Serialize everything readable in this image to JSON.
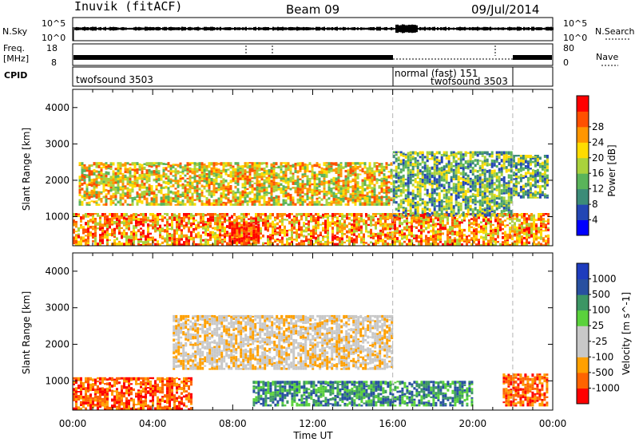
{
  "header": {
    "station": "Inuvik (fitACF)",
    "beam": "Beam 09",
    "date": "09/Jul/2014"
  },
  "summary": {
    "nsky_label": "N.Sky",
    "nsky_ticks": [
      "10^5",
      "10^0"
    ],
    "nsearch_label": "N.Search",
    "nsearch_ticks": [
      "10^5",
      "10^0"
    ],
    "freq_label": "Freq.",
    "freq_unit": "[MHz]",
    "freq_ticks": [
      "18",
      "8"
    ],
    "nave_label": "Nave",
    "nave_ticks": [
      "80",
      "0"
    ],
    "cpid_label": "CPID",
    "cpid_segments": [
      {
        "name": "twofsound 3503",
        "start": 0,
        "end": 16
      },
      {
        "name": "normal (fast) 151",
        "start": 16,
        "end": 22
      },
      {
        "name": "twofsound 3503",
        "start": 16,
        "end": 22
      }
    ]
  },
  "colors": {
    "power": [
      "#0000ff",
      "#2346b4",
      "#3c8c78",
      "#5ab45a",
      "#aad23c",
      "#ffdc00",
      "#ff9600",
      "#ff5000",
      "#ff0000"
    ],
    "velocity": [
      "#ff0000",
      "#ff6400",
      "#ffa000",
      "#c8c8c8",
      "#c8c8c8",
      "#5ad23c",
      "#3c9664",
      "#2850a0",
      "#1e3cbe"
    ],
    "grey_line": "#b4b4b4"
  },
  "chart_data": [
    {
      "type": "heatmap",
      "name": "power",
      "xlabel": "Time UT",
      "ylabel": "Slant Range [km]",
      "xlim": [
        0,
        24
      ],
      "ylim": [
        200,
        4500
      ],
      "x_tick_labels": [
        "00:00",
        "04:00",
        "08:00",
        "12:00",
        "16:00",
        "20:00",
        "00:00"
      ],
      "y_ticks": [
        1000,
        2000,
        3000,
        4000
      ],
      "colorbar": {
        "label": "Power [dB]",
        "ticks": [
          "4",
          "8",
          "12",
          "16",
          "20",
          "24",
          "28"
        ],
        "range": [
          0,
          30
        ]
      },
      "echo_bands": [
        {
          "t0": 0,
          "t1": 23.8,
          "r0": 200,
          "r1": 1100,
          "level": 26
        },
        {
          "t0": 0.3,
          "t1": 16,
          "r0": 1300,
          "r1": 2500,
          "level": 20
        },
        {
          "t0": 7.8,
          "t1": 9.3,
          "r0": 250,
          "r1": 850,
          "level": 30
        },
        {
          "t0": 16,
          "t1": 22,
          "r0": 1000,
          "r1": 2800,
          "level": 12
        },
        {
          "t0": 22,
          "t1": 23.8,
          "r0": 1500,
          "r1": 2700,
          "level": 14
        }
      ],
      "cpid_change_times": [
        16,
        22
      ]
    },
    {
      "type": "heatmap",
      "name": "velocity",
      "xlabel": "Time UT",
      "ylabel": "Slant Range [km]",
      "xlim": [
        0,
        24
      ],
      "ylim": [
        200,
        4500
      ],
      "x_tick_labels": [
        "00:00",
        "04:00",
        "08:00",
        "12:00",
        "16:00",
        "20:00",
        "00:00"
      ],
      "y_ticks": [
        1000,
        2000,
        3000,
        4000
      ],
      "colorbar": {
        "label": "Velocity [m s^-1]",
        "ticks": [
          "1000",
          "500",
          "100",
          "25",
          "-25",
          "-100",
          "-500",
          "-1000"
        ]
      },
      "echo_bands": [
        {
          "t0": 0,
          "t1": 6,
          "r0": 200,
          "r1": 1100,
          "level": -300
        },
        {
          "t0": 5,
          "t1": 16,
          "r0": 1300,
          "r1": 2800,
          "level": 0
        },
        {
          "t0": 9,
          "t1": 20,
          "r0": 300,
          "r1": 1000,
          "level": 200
        },
        {
          "t0": 21.5,
          "t1": 23.8,
          "r0": 300,
          "r1": 1200,
          "level": -300
        }
      ],
      "cpid_change_times": [
        16,
        22
      ]
    }
  ]
}
